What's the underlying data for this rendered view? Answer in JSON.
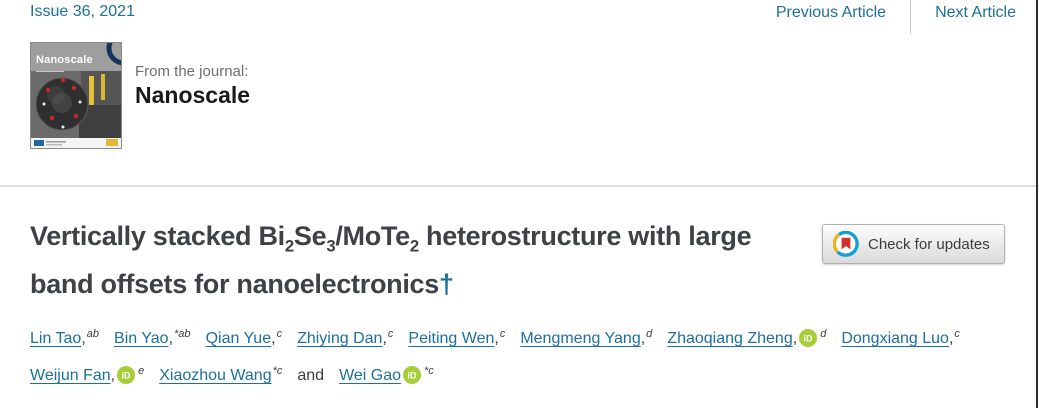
{
  "colors": {
    "link_blue": "#1d6f9e",
    "title_grey": "#3e4146",
    "divider_grey": "#dcdcdc",
    "muted_grey": "#6e6e6e",
    "orcid_green": "#a6ce39",
    "crossmark_blue": "#14a0d6",
    "crossmark_yellow": "#e9b620",
    "crossmark_red": "#d0342c"
  },
  "header": {
    "issue_link": "Issue 36, 2021",
    "previous_article": "Previous Article",
    "next_article": "Next Article"
  },
  "journal": {
    "from_label": "From the journal:",
    "name": "Nanoscale",
    "cover_title": "Nanoscale"
  },
  "article": {
    "title_parts": [
      {
        "t": "Vertically stacked Bi"
      },
      {
        "t": "2",
        "sub": true
      },
      {
        "t": "Se"
      },
      {
        "t": "3",
        "sub": true
      },
      {
        "t": "/MoTe"
      },
      {
        "t": "2",
        "sub": true
      },
      {
        "t": " heterostructure with large band offsets for nanoelectronics"
      }
    ],
    "dagger": "†",
    "check_for_updates": "Check for updates"
  },
  "authors": {
    "and_label": "and",
    "line_break_after_index": 7,
    "list": [
      {
        "name": "Lin Tao",
        "comma": true,
        "sup": "ab"
      },
      {
        "name": "Bin Yao",
        "comma": true,
        "sup": "*ab"
      },
      {
        "name": "Qian Yue",
        "comma": true,
        "sup": "c"
      },
      {
        "name": "Zhiying Dan",
        "comma": true,
        "sup": "c"
      },
      {
        "name": "Peiting Wen",
        "comma": true,
        "sup": "c"
      },
      {
        "name": "Mengmeng Yang",
        "comma": true,
        "sup": "d"
      },
      {
        "name": "Zhaoqiang Zheng",
        "comma": true,
        "orcid": true,
        "sup": "d"
      },
      {
        "name": "Dongxiang Luo",
        "comma": true,
        "sup": "c"
      },
      {
        "name": "Weijun Fan",
        "comma": true,
        "orcid": true,
        "sup": "e"
      },
      {
        "name": "Xiaozhou Wang",
        "comma": false,
        "sup": "*c",
        "and_after": true
      },
      {
        "name": "Wei Gao",
        "comma": false,
        "orcid": true,
        "sup": "*c"
      }
    ]
  },
  "icons": {
    "orcid": "orcid-id-icon",
    "crossmark": "crossmark-icon",
    "cover": "journal-cover-thumbnail"
  }
}
